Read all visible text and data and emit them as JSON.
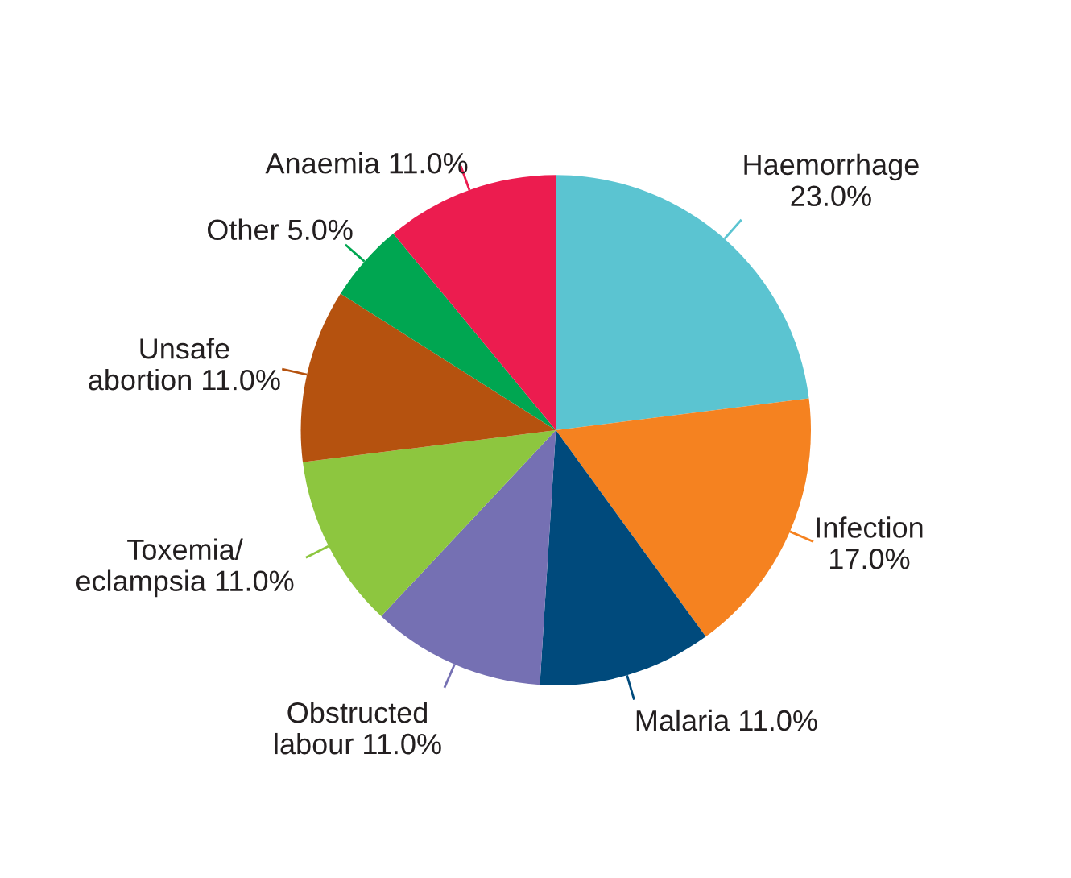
{
  "chart_data": {
    "type": "pie",
    "categories": [
      "Haemorrhage",
      "Infection",
      "Malaria",
      "Obstructed\nlabour",
      "Toxemia/\neclampsia",
      "Unsafe\nabortion",
      "Other",
      "Anaemia"
    ],
    "values": [
      23,
      17,
      11,
      11,
      11,
      11,
      5,
      11
    ],
    "value_labels": [
      "23.0%",
      "17.0%",
      "11.0%",
      "11.0%",
      "11.0%",
      "11.0%",
      "5.0%",
      "11.0%"
    ],
    "colors": [
      "#5bc4d1",
      "#f58220",
      "#004a7c",
      "#7570b3",
      "#8dc63f",
      "#b5520f",
      "#00a651",
      "#ec1c4f"
    ],
    "legend": false
  }
}
